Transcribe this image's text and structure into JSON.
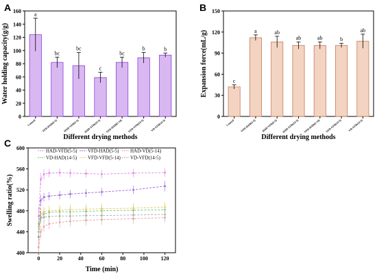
{
  "chart_data": [
    {
      "panel": "A",
      "type": "bar",
      "title": "",
      "xlabel": "Different drying methods",
      "ylabel": "Water holding capacity(g/g)",
      "ylim": [
        0,
        160
      ],
      "yticks": [
        0,
        20,
        40,
        60,
        80,
        100,
        120,
        140,
        160
      ],
      "categories": [
        "Control",
        "VFD-HAD(5-5)",
        "HAD-VFD(5-5)",
        "HAD-VFD(14-5)",
        "VFD-HAD(5-14)",
        "VFD-VFD(14-5)",
        "VD-VFD(14-5)"
      ],
      "values": [
        124,
        82,
        77,
        59,
        82,
        89,
        93
      ],
      "errors": [
        25,
        8,
        20,
        8,
        8,
        8,
        3
      ],
      "significance": [
        "a",
        "bc",
        "bc",
        "c",
        "bc",
        "b",
        "b"
      ],
      "bar_color": "#d9b8f2",
      "edge_color": "#8a3fd6"
    },
    {
      "panel": "B",
      "type": "bar",
      "title": "",
      "xlabel": "Different drying methods",
      "ylabel": "Expansion force(mL/g)",
      "ylim": [
        0,
        150
      ],
      "yticks": [
        0,
        30,
        60,
        90,
        120,
        150
      ],
      "categories": [
        "Control",
        "VFD-HAD(5-5)",
        "HAD-VFD(5-5)",
        "HAD-VFD(14-5)",
        "VFD-HAD(5-14)",
        "VFD-VFD(14-5)",
        "VD-VFD(14-5)"
      ],
      "values": [
        42,
        112,
        106,
        101,
        101,
        101,
        107
      ],
      "errors": [
        3,
        4,
        8,
        5,
        5,
        3,
        10
      ],
      "significance": [
        "c",
        "a",
        "ab",
        "ab",
        "ab",
        "b",
        "ab"
      ],
      "bar_color": "#f3d3c2",
      "edge_color": "#c97a55"
    },
    {
      "panel": "C",
      "type": "line",
      "title": "",
      "xlabel": "Time (min)",
      "ylabel": "Swelling ratio(%)",
      "xlim": [
        -10,
        130
      ],
      "ylim": [
        400,
        600
      ],
      "xticks": [
        0,
        20,
        40,
        60,
        80,
        100,
        120
      ],
      "yticks": [
        400,
        440,
        480,
        520,
        560,
        600
      ],
      "legend_placement": "top",
      "series": [
        {
          "name": "HAD-VFD(5-5)",
          "color": "#e37ce8",
          "x": [
            0,
            2,
            5,
            10,
            20,
            30,
            45,
            60,
            90,
            120
          ],
          "y": [
            470,
            540,
            550,
            552,
            553,
            552,
            551,
            550,
            552,
            553
          ],
          "err": [
            18,
            12,
            10,
            8,
            8,
            8,
            8,
            8,
            8,
            8
          ]
        },
        {
          "name": "VFD-HAD(5-5)",
          "color": "#9d5bd6",
          "x": [
            0,
            2,
            5,
            10,
            20,
            30,
            45,
            60,
            90,
            120
          ],
          "y": [
            430,
            500,
            506,
            508,
            510,
            512,
            514,
            516,
            520,
            527
          ],
          "err": [
            20,
            10,
            8,
            8,
            8,
            8,
            8,
            8,
            8,
            10
          ]
        },
        {
          "name": "HAD-VD(5-14)",
          "color": "#e89a9a",
          "x": [
            0,
            2,
            5,
            10,
            20,
            30,
            45,
            60,
            90,
            120
          ],
          "y": [
            410,
            440,
            450,
            455,
            458,
            460,
            462,
            463,
            465,
            467
          ],
          "err": [
            15,
            12,
            10,
            10,
            10,
            10,
            10,
            10,
            10,
            10
          ]
        },
        {
          "name": "VD-HAD(14-5)",
          "color": "#6fc36f",
          "x": [
            0,
            2,
            5,
            10,
            20,
            30,
            45,
            60,
            90,
            120
          ],
          "y": [
            440,
            468,
            474,
            477,
            478,
            478,
            479,
            480,
            481,
            482
          ],
          "err": [
            15,
            12,
            10,
            10,
            10,
            10,
            10,
            10,
            10,
            12
          ]
        },
        {
          "name": "VFD-VFD(5-14)",
          "color": "#e0c85a",
          "x": [
            0,
            2,
            5,
            10,
            20,
            30,
            45,
            60,
            90,
            120
          ],
          "y": [
            450,
            474,
            478,
            480,
            481,
            482,
            483,
            484,
            485,
            487
          ],
          "err": [
            15,
            12,
            10,
            10,
            10,
            10,
            10,
            10,
            10,
            10
          ]
        },
        {
          "name": "VD-VFD(14-5)",
          "color": "#a8a8a8",
          "x": [
            0,
            2,
            5,
            10,
            20,
            30,
            45,
            60,
            90,
            120
          ],
          "y": [
            455,
            466,
            468,
            469,
            470,
            470,
            471,
            471,
            472,
            473
          ],
          "err": [
            12,
            10,
            10,
            10,
            10,
            10,
            10,
            10,
            10,
            10
          ]
        }
      ]
    }
  ]
}
